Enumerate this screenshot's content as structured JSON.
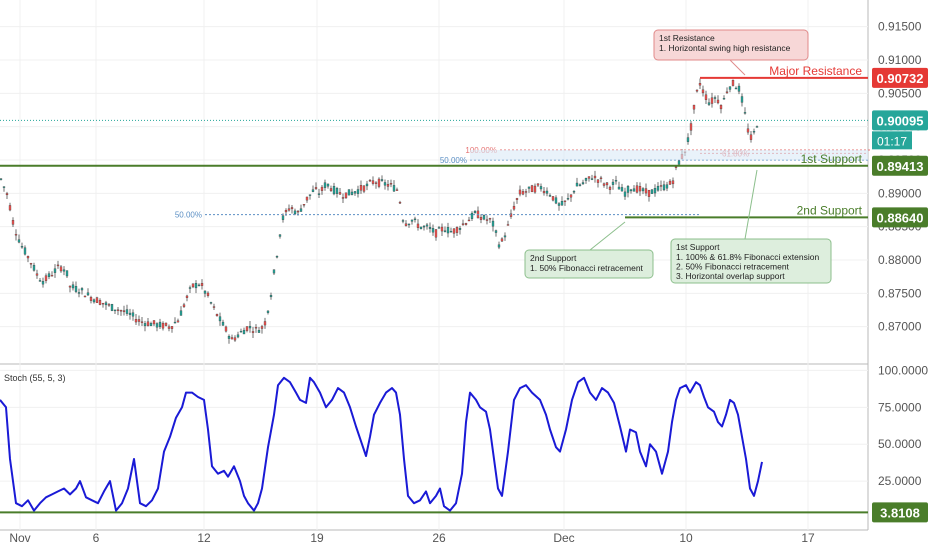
{
  "chart_data": [
    {
      "type": "candlestick",
      "panel": "price",
      "y_ticks": [
        "0.91500",
        "0.91000",
        "0.90500",
        "0.90000",
        "0.89500",
        "0.89000",
        "0.88500",
        "0.88000",
        "0.87500",
        "0.87000"
      ],
      "y_tick_values": [
        0.915,
        0.91,
        0.905,
        0.9,
        0.895,
        0.89,
        0.885,
        0.88,
        0.875,
        0.87
      ],
      "ylim": [
        0.8647,
        0.919
      ],
      "grid": true,
      "colors": {
        "up": "#26a69a",
        "down": "#ef5350",
        "support": "#4a7d2a",
        "resistance": "#e53935",
        "price": "#26a69a",
        "fib": "#5b8fc4",
        "fib_red": "#e57373"
      },
      "price_path": [
        [
          0,
          0.8925
        ],
        [
          8,
          0.8895
        ],
        [
          14,
          0.885
        ],
        [
          22,
          0.882
        ],
        [
          30,
          0.88
        ],
        [
          38,
          0.8775
        ],
        [
          44,
          0.8768
        ],
        [
          52,
          0.878
        ],
        [
          60,
          0.879
        ],
        [
          66,
          0.8785
        ],
        [
          70,
          0.876
        ],
        [
          80,
          0.8755
        ],
        [
          90,
          0.8745
        ],
        [
          100,
          0.8738
        ],
        [
          110,
          0.873
        ],
        [
          120,
          0.8725
        ],
        [
          130,
          0.8718
        ],
        [
          140,
          0.8708
        ],
        [
          150,
          0.8705
        ],
        [
          160,
          0.8702
        ],
        [
          170,
          0.87
        ],
        [
          178,
          0.871
        ],
        [
          186,
          0.874
        ],
        [
          192,
          0.876
        ],
        [
          200,
          0.8765
        ],
        [
          208,
          0.8745
        ],
        [
          216,
          0.872
        ],
        [
          224,
          0.87
        ],
        [
          232,
          0.868
        ],
        [
          240,
          0.869
        ],
        [
          248,
          0.87
        ],
        [
          256,
          0.8695
        ],
        [
          264,
          0.87
        ],
        [
          270,
          0.874
        ],
        [
          276,
          0.88
        ],
        [
          282,
          0.886
        ],
        [
          290,
          0.888
        ],
        [
          298,
          0.887
        ],
        [
          306,
          0.889
        ],
        [
          314,
          0.8905
        ],
        [
          320,
          0.89
        ],
        [
          326,
          0.8915
        ],
        [
          334,
          0.8905
        ],
        [
          342,
          0.8898
        ],
        [
          350,
          0.89
        ],
        [
          358,
          0.8905
        ],
        [
          366,
          0.891
        ],
        [
          374,
          0.8918
        ],
        [
          382,
          0.8915
        ],
        [
          390,
          0.8912
        ],
        [
          398,
          0.8905
        ],
        [
          404,
          0.8855
        ],
        [
          412,
          0.886
        ],
        [
          420,
          0.885
        ],
        [
          428,
          0.8848
        ],
        [
          436,
          0.884
        ],
        [
          444,
          0.8848
        ],
        [
          452,
          0.8842
        ],
        [
          460,
          0.885
        ],
        [
          468,
          0.886
        ],
        [
          476,
          0.887
        ],
        [
          484,
          0.8862
        ],
        [
          492,
          0.8858
        ],
        [
          500,
          0.882
        ],
        [
          508,
          0.885
        ],
        [
          514,
          0.888
        ],
        [
          520,
          0.89
        ],
        [
          530,
          0.8905
        ],
        [
          540,
          0.891
        ],
        [
          550,
          0.89
        ],
        [
          560,
          0.888
        ],
        [
          568,
          0.889
        ],
        [
          576,
          0.891
        ],
        [
          584,
          0.8915
        ],
        [
          592,
          0.8925
        ],
        [
          600,
          0.892
        ],
        [
          608,
          0.891
        ],
        [
          616,
          0.8915
        ],
        [
          624,
          0.89
        ],
        [
          632,
          0.891
        ],
        [
          640,
          0.8905
        ],
        [
          648,
          0.89
        ],
        [
          656,
          0.8905
        ],
        [
          664,
          0.891
        ],
        [
          672,
          0.8915
        ],
        [
          678,
          0.8945
        ],
        [
          684,
          0.896
        ],
        [
          690,
          0.899
        ],
        [
          696,
          0.9045
        ],
        [
          700,
          0.9065
        ],
        [
          704,
          0.905
        ],
        [
          710,
          0.9035
        ],
        [
          716,
          0.9045
        ],
        [
          722,
          0.903
        ],
        [
          728,
          0.906
        ],
        [
          734,
          0.9065
        ],
        [
          740,
          0.9055
        ],
        [
          746,
          0.901
        ],
        [
          750,
          0.898
        ],
        [
          754,
          0.899
        ],
        [
          758,
          0.901
        ]
      ],
      "levels": [
        {
          "name": "Major Resistance",
          "value": "0.90732",
          "y": 0.90732,
          "from_day": 700,
          "kind": "resistance"
        },
        {
          "name": "1st Support",
          "value": "0.89413",
          "y": 0.89413,
          "from_day": 0,
          "kind": "support"
        },
        {
          "name": "2nd Support",
          "value": "0.88640",
          "y": 0.8864,
          "from_day": 625,
          "kind": "support"
        }
      ],
      "current_price": {
        "value": "0.90095",
        "y": 0.90095,
        "countdown": "01:17"
      },
      "fib_lines": [
        {
          "label": "100.00%",
          "y": 0.8965,
          "color": "fib_red"
        },
        {
          "label": "50.00%",
          "y": 0.895,
          "color": "fib"
        },
        {
          "label": "61.80%",
          "y": 0.896,
          "color": "fib_red"
        },
        {
          "label": "50.00%",
          "y": 0.8868,
          "color": "fib"
        }
      ],
      "annotations": [
        {
          "title": "1st Resistance",
          "lines": [
            "1. Horizontal swing high resistance"
          ]
        },
        {
          "title": "2nd Support",
          "lines": [
            "1. 50% Fibonacci retracement"
          ]
        },
        {
          "title": "1st Support",
          "lines": [
            "1. 100% & 61.8% Fibonacci extension",
            "2. 50% Fibonacci retracement",
            "3. Horizontal overlap support"
          ]
        }
      ]
    },
    {
      "type": "line",
      "panel": "indicator",
      "title": "Stoch (55, 5, 3)",
      "y_ticks": [
        "100.0000",
        "75.0000",
        "50.0000",
        "25.0000"
      ],
      "y_tick_values": [
        100,
        75,
        50,
        25
      ],
      "ylim": [
        0,
        103
      ],
      "level": {
        "value": "3.8108",
        "y": 3.8108
      },
      "color": "#1a1ad6",
      "series": [
        [
          0,
          80
        ],
        [
          6,
          75
        ],
        [
          10,
          40
        ],
        [
          16,
          10
        ],
        [
          22,
          8
        ],
        [
          28,
          12
        ],
        [
          34,
          5
        ],
        [
          40,
          10
        ],
        [
          46,
          14
        ],
        [
          52,
          16
        ],
        [
          58,
          18
        ],
        [
          64,
          20
        ],
        [
          70,
          16
        ],
        [
          76,
          20
        ],
        [
          80,
          25
        ],
        [
          86,
          14
        ],
        [
          92,
          12
        ],
        [
          98,
          10
        ],
        [
          104,
          18
        ],
        [
          110,
          25
        ],
        [
          116,
          5
        ],
        [
          122,
          10
        ],
        [
          128,
          20
        ],
        [
          134,
          40
        ],
        [
          140,
          10
        ],
        [
          146,
          8
        ],
        [
          152,
          12
        ],
        [
          158,
          20
        ],
        [
          164,
          45
        ],
        [
          170,
          55
        ],
        [
          176,
          68
        ],
        [
          182,
          75
        ],
        [
          186,
          85
        ],
        [
          192,
          85
        ],
        [
          198,
          82
        ],
        [
          204,
          80
        ],
        [
          208,
          60
        ],
        [
          212,
          35
        ],
        [
          218,
          30
        ],
        [
          224,
          32
        ],
        [
          228,
          28
        ],
        [
          234,
          35
        ],
        [
          240,
          25
        ],
        [
          244,
          15
        ],
        [
          248,
          10
        ],
        [
          254,
          5
        ],
        [
          258,
          10
        ],
        [
          262,
          20
        ],
        [
          268,
          48
        ],
        [
          274,
          70
        ],
        [
          278,
          90
        ],
        [
          284,
          95
        ],
        [
          290,
          92
        ],
        [
          296,
          85
        ],
        [
          300,
          80
        ],
        [
          306,
          78
        ],
        [
          310,
          95
        ],
        [
          314,
          92
        ],
        [
          320,
          85
        ],
        [
          326,
          75
        ],
        [
          332,
          80
        ],
        [
          338,
          88
        ],
        [
          344,
          85
        ],
        [
          350,
          75
        ],
        [
          356,
          62
        ],
        [
          362,
          50
        ],
        [
          366,
          42
        ],
        [
          370,
          55
        ],
        [
          374,
          70
        ],
        [
          380,
          78
        ],
        [
          386,
          85
        ],
        [
          392,
          88
        ],
        [
          396,
          85
        ],
        [
          400,
          70
        ],
        [
          404,
          40
        ],
        [
          408,
          15
        ],
        [
          414,
          10
        ],
        [
          420,
          12
        ],
        [
          426,
          18
        ],
        [
          430,
          10
        ],
        [
          436,
          15
        ],
        [
          440,
          20
        ],
        [
          444,
          8
        ],
        [
          450,
          5
        ],
        [
          456,
          10
        ],
        [
          462,
          30
        ],
        [
          466,
          65
        ],
        [
          470,
          85
        ],
        [
          476,
          80
        ],
        [
          480,
          75
        ],
        [
          486,
          72
        ],
        [
          490,
          60
        ],
        [
          494,
          40
        ],
        [
          498,
          20
        ],
        [
          502,
          15
        ],
        [
          508,
          45
        ],
        [
          514,
          80
        ],
        [
          520,
          88
        ],
        [
          526,
          90
        ],
        [
          532,
          85
        ],
        [
          540,
          80
        ],
        [
          546,
          70
        ],
        [
          550,
          60
        ],
        [
          556,
          48
        ],
        [
          560,
          45
        ],
        [
          566,
          60
        ],
        [
          572,
          80
        ],
        [
          578,
          92
        ],
        [
          584,
          95
        ],
        [
          590,
          85
        ],
        [
          596,
          80
        ],
        [
          602,
          88
        ],
        [
          608,
          85
        ],
        [
          614,
          78
        ],
        [
          620,
          62
        ],
        [
          626,
          45
        ],
        [
          630,
          60
        ],
        [
          636,
          58
        ],
        [
          640,
          45
        ],
        [
          646,
          35
        ],
        [
          650,
          50
        ],
        [
          656,
          45
        ],
        [
          662,
          30
        ],
        [
          668,
          45
        ],
        [
          672,
          65
        ],
        [
          676,
          80
        ],
        [
          680,
          88
        ],
        [
          686,
          90
        ],
        [
          690,
          85
        ],
        [
          696,
          92
        ],
        [
          700,
          90
        ],
        [
          704,
          82
        ],
        [
          708,
          75
        ],
        [
          714,
          72
        ],
        [
          718,
          65
        ],
        [
          722,
          62
        ],
        [
          726,
          70
        ],
        [
          730,
          80
        ],
        [
          734,
          78
        ],
        [
          738,
          70
        ],
        [
          742,
          55
        ],
        [
          746,
          40
        ],
        [
          750,
          20
        ],
        [
          754,
          15
        ],
        [
          758,
          25
        ],
        [
          762,
          38
        ]
      ],
      "x_ticks": [
        "Nov",
        "6",
        "12",
        "19",
        "26",
        "Dec",
        "10",
        "17"
      ],
      "x_tick_days": [
        20,
        96,
        204,
        317,
        439,
        564,
        686,
        808
      ]
    }
  ]
}
